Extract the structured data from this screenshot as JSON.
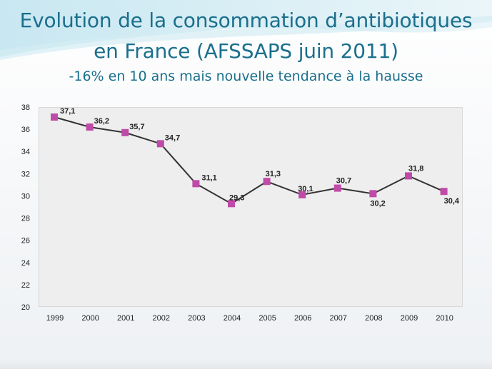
{
  "slide": {
    "title_line1": "Evolution de la consommation d’antibiotiques",
    "title_line2": "en France (AFSSAPS juin 2011)",
    "subtitle": "-16% en 10 ans mais nouvelle tendance à la hausse"
  },
  "colors": {
    "title": "#1a6f8c",
    "line": "#333333",
    "marker": "#c04aa8",
    "plot_background": "#eeeeee"
  },
  "chart_data": {
    "type": "line",
    "title": "",
    "xlabel": "",
    "ylabel": "",
    "categories": [
      "1999",
      "2000",
      "2001",
      "2002",
      "2003",
      "2004",
      "2005",
      "2006",
      "2007",
      "2008",
      "2009",
      "2010"
    ],
    "series": [
      {
        "values": [
          37.1,
          36.2,
          35.7,
          34.7,
          31.1,
          29.3,
          31.3,
          30.1,
          30.7,
          30.2,
          31.8,
          30.4
        ],
        "labels": [
          "37,1",
          "36,2",
          "35,7",
          "34,7",
          "31,1",
          "29,3",
          "31,3",
          "30,1",
          "30,7",
          "30,2",
          "31,8",
          "30,4"
        ]
      }
    ],
    "ylim": [
      20,
      38
    ],
    "yticks": [
      "20",
      "22",
      "24",
      "26",
      "28",
      "30",
      "32",
      "34",
      "36",
      "38"
    ],
    "grid": false,
    "legend": "none",
    "marker": "square"
  }
}
